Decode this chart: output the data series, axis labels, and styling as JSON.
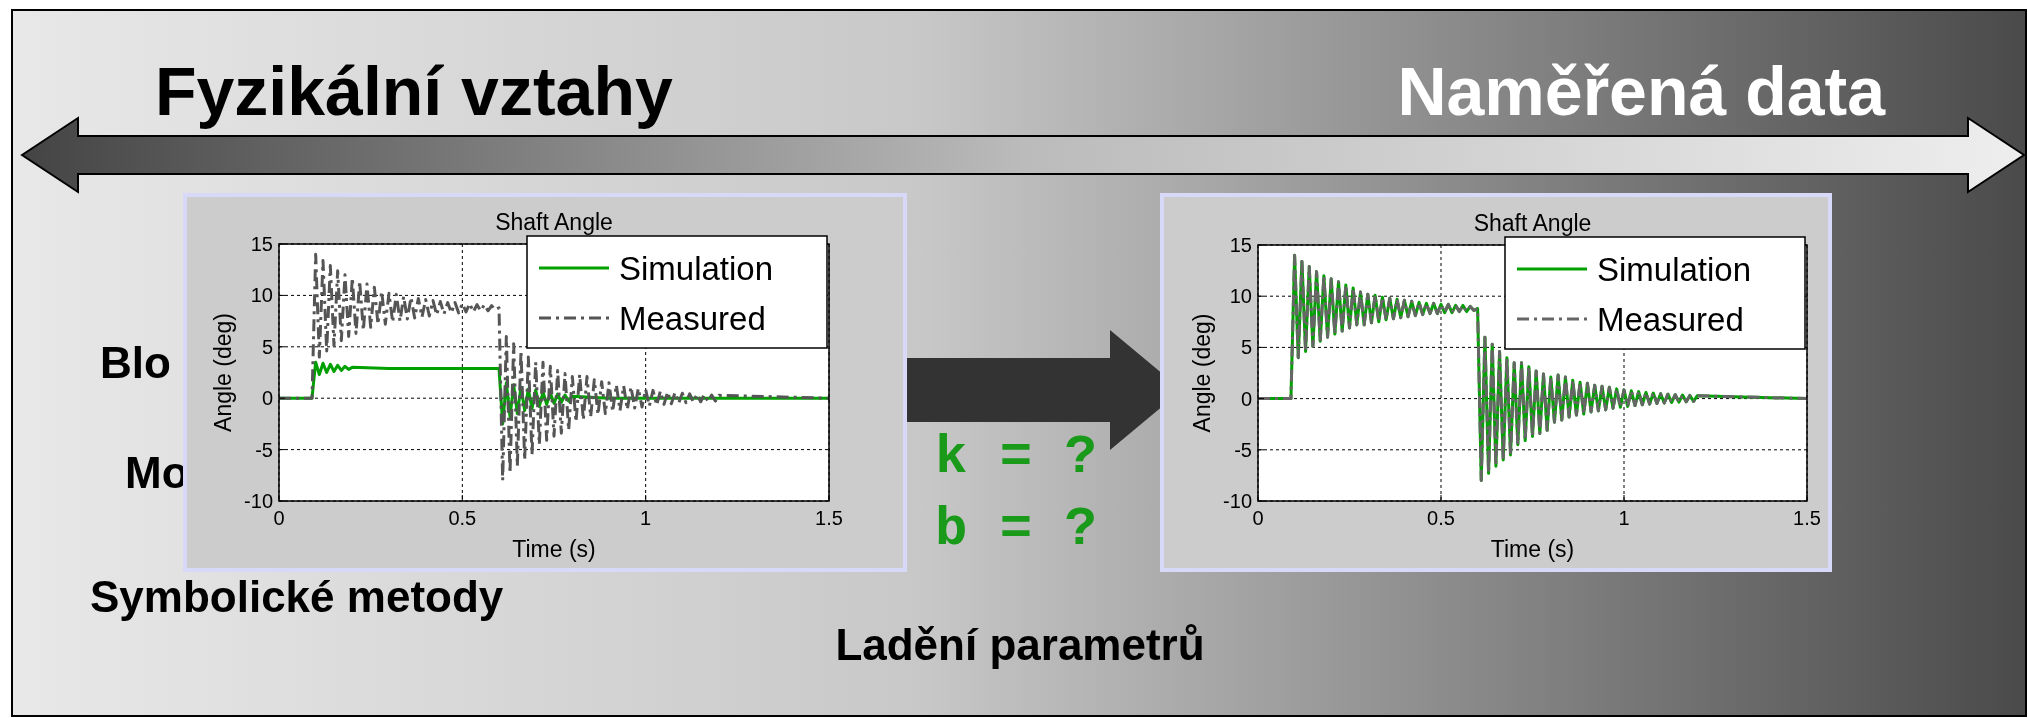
{
  "chart_data": [
    {
      "type": "other",
      "annotations": [
        "Fyzikální vztahy",
        "Naměřená data",
        "Blo",
        "Mo",
        "Symbolické metody",
        "k = ?",
        "b = ?",
        "Ladění parametrů"
      ]
    },
    {
      "type": "line",
      "title": "Shaft Angle",
      "xlabel": "Time (s)",
      "ylabel": "Angle (deg)",
      "xlim": [
        0,
        1.5
      ],
      "xticks": [
        0,
        0.5,
        1,
        1.5
      ],
      "ylim": [
        -10,
        15
      ],
      "yticks": [
        -10,
        -5,
        0,
        5,
        10,
        15
      ],
      "grid": true,
      "legend": "top right",
      "series": [
        {
          "name": "Simulation",
          "color": "#00a000",
          "line_style": "solid",
          "x": [
            0,
            0.09,
            0.1,
            0.11,
            0.12,
            0.13,
            0.14,
            0.15,
            0.16,
            0.17,
            0.18,
            0.19,
            0.2,
            0.3,
            0.35,
            0.6,
            0.61,
            0.62,
            0.63,
            0.64,
            0.65,
            0.66,
            0.67,
            0.68,
            0.69,
            0.7,
            0.71,
            0.72,
            0.73,
            0.74,
            0.75,
            0.76,
            0.77,
            0.78,
            0.79,
            0.8,
            0.9,
            1.5
          ],
          "values": [
            0,
            0,
            3.5,
            2.3,
            3.4,
            2.5,
            3.3,
            2.6,
            3.2,
            2.7,
            3.1,
            2.8,
            3.0,
            2.9,
            2.9,
            2.9,
            -2.5,
            1.5,
            -1.8,
            1.3,
            -1.5,
            1.1,
            -1.2,
            0.9,
            -1,
            0.8,
            -0.8,
            0.6,
            -0.6,
            0.5,
            -0.5,
            0.4,
            -0.4,
            0.3,
            -0.3,
            0.2,
            0,
            0
          ]
        },
        {
          "name": "Measured",
          "color": "#555555",
          "line_style": "dashed",
          "x": [
            0,
            0.09,
            0.1,
            0.11,
            0.12,
            0.13,
            0.14,
            0.15,
            0.16,
            0.17,
            0.18,
            0.19,
            0.2,
            0.21,
            0.22,
            0.23,
            0.24,
            0.25,
            0.26,
            0.27,
            0.28,
            0.29,
            0.3,
            0.31,
            0.32,
            0.33,
            0.34,
            0.35,
            0.36,
            0.37,
            0.38,
            0.39,
            0.4,
            0.41,
            0.42,
            0.43,
            0.44,
            0.45,
            0.46,
            0.47,
            0.48,
            0.49,
            0.5,
            0.51,
            0.52,
            0.53,
            0.54,
            0.55,
            0.56,
            0.57,
            0.58,
            0.59,
            0.6,
            0.61,
            0.62,
            0.63,
            0.64,
            0.65,
            0.66,
            0.67,
            0.68,
            0.69,
            0.7,
            0.71,
            0.72,
            0.73,
            0.74,
            0.75,
            0.76,
            0.77,
            0.78,
            0.79,
            0.8,
            0.81,
            0.82,
            0.83,
            0.84,
            0.85,
            0.86,
            0.87,
            0.88,
            0.89,
            0.9,
            0.91,
            0.92,
            0.93,
            0.94,
            0.95,
            0.96,
            0.97,
            0.98,
            0.99,
            1,
            1.01,
            1.02,
            1.03,
            1.04,
            1.05,
            1.06,
            1.07,
            1.08,
            1.09,
            1.1,
            1.11,
            1.12,
            1.13,
            1.14,
            1.15,
            1.16,
            1.17,
            1.18,
            1.19,
            1.2,
            1.5
          ],
          "values": [
            0,
            0,
            14,
            4,
            13.4,
            4.6,
            12.9,
            5.1,
            12.4,
            5.6,
            12,
            6,
            11.7,
            6.3,
            11.4,
            6.6,
            11.1,
            6.9,
            10.8,
            7.2,
            10.4,
            7.2,
            10.2,
            7.4,
            10.1,
            7.5,
            9.9,
            7.7,
            9.8,
            7.8,
            9.7,
            7.9,
            9.6,
            8,
            9.5,
            8.1,
            9.4,
            8.2,
            9.3,
            8.3,
            9.3,
            8.3,
            9.2,
            8.4,
            9.2,
            8.4,
            9.1,
            8.5,
            9.1,
            8.5,
            9,
            8.6,
            8.8,
            -8,
            6,
            -7.3,
            5.3,
            -6.6,
            4.6,
            -6,
            4,
            -5.5,
            3.5,
            -4.5,
            3.5,
            -4.1,
            3.1,
            -3.7,
            2.7,
            -3.4,
            2.4,
            -3.1,
            2.1,
            -2.3,
            2.3,
            -2.1,
            2.1,
            -1.8,
            1.8,
            -1.6,
            1.6,
            -1.5,
            1.5,
            -1.3,
            1.3,
            -1.2,
            1.2,
            -1.1,
            1.1,
            -0.95,
            0.95,
            -0.85,
            0.85,
            -0.76,
            0.76,
            -0.68,
            0.68,
            -0.6,
            0.6,
            -0.54,
            0.54,
            -0.48,
            0.48,
            -0.43,
            0.43,
            -0.38,
            0.38,
            -0.35,
            0.35,
            -0.31,
            0.31,
            -0.28,
            0.28,
            0
          ]
        }
      ]
    },
    {
      "type": "line",
      "title": "Shaft Angle",
      "xlabel": "Time (s)",
      "ylabel": "Angle (deg)",
      "xlim": [
        0,
        1.5
      ],
      "xticks": [
        0,
        0.5,
        1,
        1.5
      ],
      "ylim": [
        -10,
        15
      ],
      "yticks": [
        -10,
        -5,
        0,
        5,
        10,
        15
      ],
      "grid": true,
      "legend": "top right",
      "series": [
        {
          "name": "Simulation",
          "color": "#00a000",
          "line_style": "solid",
          "x": [
            0,
            0.09,
            0.1,
            0.11,
            0.12,
            0.13,
            0.14,
            0.15,
            0.16,
            0.17,
            0.18,
            0.19,
            0.2,
            0.21,
            0.22,
            0.23,
            0.24,
            0.25,
            0.26,
            0.27,
            0.28,
            0.29,
            0.3,
            0.31,
            0.32,
            0.33,
            0.34,
            0.35,
            0.36,
            0.37,
            0.38,
            0.39,
            0.4,
            0.41,
            0.42,
            0.43,
            0.44,
            0.45,
            0.46,
            0.47,
            0.48,
            0.49,
            0.5,
            0.51,
            0.52,
            0.53,
            0.54,
            0.55,
            0.56,
            0.57,
            0.58,
            0.59,
            0.6,
            0.61,
            0.62,
            0.63,
            0.64,
            0.65,
            0.66,
            0.67,
            0.68,
            0.69,
            0.7,
            0.71,
            0.72,
            0.73,
            0.74,
            0.75,
            0.76,
            0.77,
            0.78,
            0.79,
            0.8,
            0.81,
            0.82,
            0.83,
            0.84,
            0.85,
            0.86,
            0.87,
            0.88,
            0.89,
            0.9,
            0.91,
            0.92,
            0.93,
            0.94,
            0.95,
            0.96,
            0.97,
            0.98,
            0.99,
            1,
            1.01,
            1.02,
            1.03,
            1.04,
            1.05,
            1.06,
            1.07,
            1.08,
            1.09,
            1.1,
            1.11,
            1.12,
            1.13,
            1.14,
            1.15,
            1.16,
            1.17,
            1.18,
            1.19,
            1.2,
            1.5
          ],
          "values": [
            0,
            0,
            14,
            4,
            13.4,
            4.6,
            12.9,
            5.1,
            12.4,
            5.6,
            12,
            6,
            11.7,
            6.3,
            11.4,
            6.6,
            11.1,
            6.9,
            10.8,
            7.2,
            10.4,
            7.2,
            10.2,
            7.4,
            10.1,
            7.5,
            9.9,
            7.7,
            9.8,
            7.8,
            9.7,
            7.9,
            9.6,
            8,
            9.5,
            8.1,
            9.4,
            8.2,
            9.3,
            8.3,
            9.3,
            8.3,
            9.2,
            8.4,
            9.2,
            8.4,
            9.1,
            8.5,
            9.1,
            8.5,
            9,
            8.6,
            8.8,
            -8,
            6,
            -7.3,
            5.3,
            -6.6,
            4.6,
            -6,
            4,
            -5.5,
            3.5,
            -4.5,
            3.5,
            -4.1,
            3.1,
            -3.7,
            2.7,
            -3.4,
            2.4,
            -3.1,
            2.1,
            -2.3,
            2.3,
            -2.1,
            2.1,
            -1.8,
            1.8,
            -1.6,
            1.6,
            -1.5,
            1.5,
            -1.3,
            1.3,
            -1.2,
            1.2,
            -1.1,
            1.1,
            -0.95,
            0.95,
            -0.85,
            0.85,
            -0.76,
            0.76,
            -0.68,
            0.68,
            -0.6,
            0.6,
            -0.54,
            0.54,
            -0.48,
            0.48,
            -0.43,
            0.43,
            -0.38,
            0.38,
            -0.35,
            0.35,
            -0.31,
            0.31,
            -0.28,
            0.28,
            0
          ]
        },
        {
          "name": "Measured",
          "color": "#666666",
          "line_style": "dashed",
          "x": [
            0,
            0.09,
            0.1,
            0.11,
            0.12,
            0.13,
            0.14,
            0.15,
            0.16,
            0.17,
            0.18,
            0.19,
            0.2,
            0.21,
            0.22,
            0.23,
            0.24,
            0.25,
            0.26,
            0.27,
            0.28,
            0.29,
            0.3,
            0.31,
            0.32,
            0.33,
            0.34,
            0.35,
            0.36,
            0.37,
            0.38,
            0.39,
            0.4,
            0.41,
            0.42,
            0.43,
            0.44,
            0.45,
            0.46,
            0.47,
            0.48,
            0.49,
            0.5,
            0.51,
            0.52,
            0.53,
            0.54,
            0.55,
            0.56,
            0.57,
            0.58,
            0.59,
            0.6,
            0.61,
            0.62,
            0.63,
            0.64,
            0.65,
            0.66,
            0.67,
            0.68,
            0.69,
            0.7,
            0.71,
            0.72,
            0.73,
            0.74,
            0.75,
            0.76,
            0.77,
            0.78,
            0.79,
            0.8,
            0.81,
            0.82,
            0.83,
            0.84,
            0.85,
            0.86,
            0.87,
            0.88,
            0.89,
            0.9,
            0.91,
            0.92,
            0.93,
            0.94,
            0.95,
            0.96,
            0.97,
            0.98,
            0.99,
            1,
            1.01,
            1.02,
            1.03,
            1.04,
            1.05,
            1.06,
            1.07,
            1.08,
            1.09,
            1.1,
            1.11,
            1.12,
            1.13,
            1.14,
            1.15,
            1.16,
            1.17,
            1.18,
            1.19,
            1.2,
            1.5
          ],
          "values": [
            0,
            0,
            14,
            4,
            13.4,
            4.6,
            12.9,
            5.1,
            12.4,
            5.6,
            12,
            6,
            11.7,
            6.3,
            11.4,
            6.6,
            11.1,
            6.9,
            10.8,
            7.2,
            10.4,
            7.2,
            10.2,
            7.4,
            10.1,
            7.5,
            9.9,
            7.7,
            9.8,
            7.8,
            9.7,
            7.9,
            9.6,
            8,
            9.5,
            8.1,
            9.4,
            8.2,
            9.3,
            8.3,
            9.3,
            8.3,
            9.2,
            8.4,
            9.2,
            8.4,
            9.1,
            8.5,
            9.1,
            8.5,
            9,
            8.6,
            8.8,
            -8,
            6,
            -7.3,
            5.3,
            -6.6,
            4.6,
            -6,
            4,
            -5.5,
            3.5,
            -4.5,
            3.5,
            -4.1,
            3.1,
            -3.7,
            2.7,
            -3.4,
            2.4,
            -3.1,
            2.1,
            -2.3,
            2.3,
            -2.1,
            2.1,
            -1.8,
            1.8,
            -1.6,
            1.6,
            -1.5,
            1.5,
            -1.3,
            1.3,
            -1.2,
            1.2,
            -1.1,
            1.1,
            -0.95,
            0.95,
            -0.85,
            0.85,
            -0.76,
            0.76,
            -0.68,
            0.68,
            -0.6,
            0.6,
            -0.54,
            0.54,
            -0.48,
            0.48,
            -0.43,
            0.43,
            -0.38,
            0.38,
            -0.35,
            0.35,
            -0.31,
            0.31,
            -0.28,
            0.28,
            0
          ]
        }
      ]
    }
  ]
}
